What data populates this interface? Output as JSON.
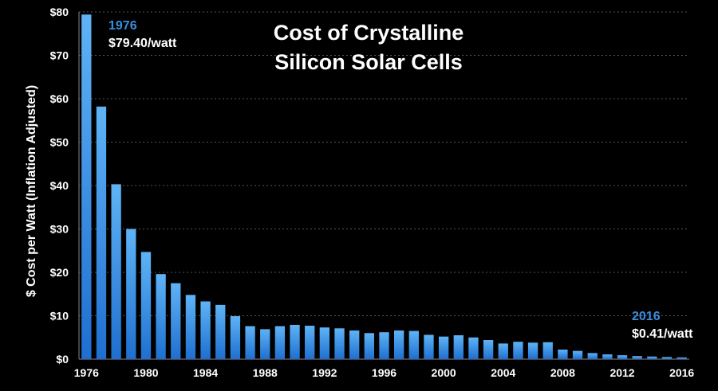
{
  "chart_data": {
    "type": "bar",
    "title_lines": [
      "Cost of Crystalline",
      "Silicon Solar Cells"
    ],
    "xlabel": "",
    "ylabel": "$ Cost per Watt (Inflation Adjusted)",
    "ylim": [
      0,
      80
    ],
    "y_ticks": [
      "$0",
      "$10",
      "$20",
      "$30",
      "$40",
      "$50",
      "$60",
      "$70",
      "$80"
    ],
    "x_ticks": [
      "1976",
      "1980",
      "1984",
      "1988",
      "1992",
      "1996",
      "2000",
      "2004",
      "2008",
      "2012",
      "2016"
    ],
    "grid": true,
    "bar_color_top": "#5fb3f5",
    "bar_color_bottom": "#1e6fd0",
    "accent_color": "#3a8fe0",
    "categories": [
      1976,
      1977,
      1978,
      1979,
      1980,
      1981,
      1982,
      1983,
      1984,
      1985,
      1986,
      1987,
      1988,
      1989,
      1990,
      1991,
      1992,
      1993,
      1994,
      1995,
      1996,
      1997,
      1998,
      1999,
      2000,
      2001,
      2002,
      2003,
      2004,
      2005,
      2006,
      2007,
      2008,
      2009,
      2010,
      2011,
      2012,
      2013,
      2014,
      2015,
      2016
    ],
    "values": [
      79.4,
      58.2,
      40.3,
      30.0,
      24.7,
      19.6,
      17.5,
      14.8,
      13.3,
      12.5,
      9.9,
      7.6,
      6.9,
      7.6,
      7.9,
      7.7,
      7.3,
      7.1,
      6.6,
      6.0,
      6.2,
      6.6,
      6.5,
      5.6,
      5.2,
      5.5,
      5.0,
      4.4,
      3.6,
      4.0,
      3.8,
      3.9,
      2.2,
      1.9,
      1.4,
      1.1,
      0.9,
      0.7,
      0.6,
      0.5,
      0.41
    ],
    "annotations": [
      {
        "year": "1976",
        "value": "$79.40/watt"
      },
      {
        "year": "2016",
        "value": "$0.41/watt"
      }
    ]
  }
}
